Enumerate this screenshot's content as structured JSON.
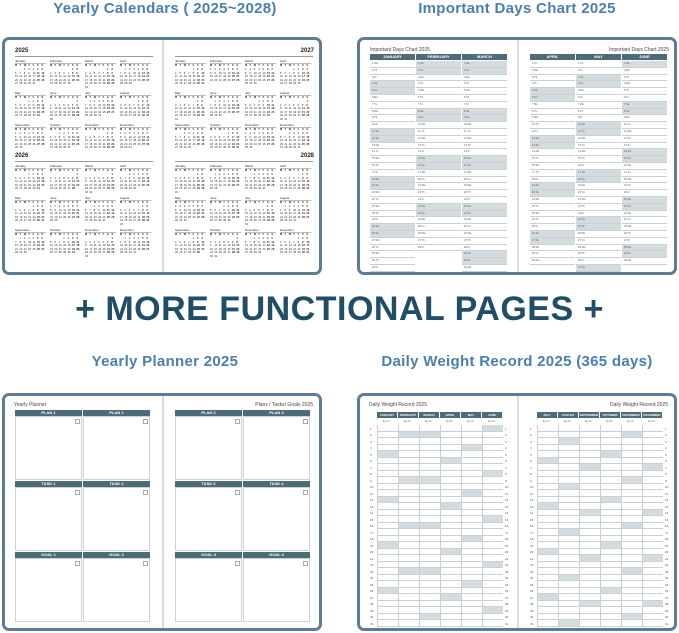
{
  "sections": {
    "calendars": {
      "title": "Yearly Calendars ( 2025~2028)",
      "years": [
        2025,
        2026,
        2027,
        2028
      ]
    },
    "important": {
      "title": "Important Days Chart 2025",
      "page_title": "Important Days Chart 2025",
      "left_months": [
        "JANUARY",
        "FEBRUARY",
        "MARCH"
      ],
      "right_months": [
        "APRIL",
        "MAY",
        "JUNE"
      ]
    },
    "banner": "+ MORE FUNCTIONAL PAGES +",
    "planner": {
      "title": "Yearly Planner 2025",
      "left_title": "Yearly Planner",
      "right_title": "Plans / Tasks/ Goals 2025",
      "left_labels": [
        [
          "PLAN 1",
          "PLAN 2"
        ],
        [
          "TASK 1",
          "TASK 2"
        ],
        [
          "GOAL 1",
          "GOAL 2"
        ]
      ],
      "right_labels": [
        [
          "PLAN 3",
          "PLAN 4"
        ],
        [
          "TASK 3",
          "TASK 4"
        ],
        [
          "GOAL 3",
          "GOAL 4"
        ]
      ]
    },
    "weight": {
      "title": "Daily Weight Record 2025 (365 days)",
      "page_title": "Daily Weight Record 2025",
      "unit": "kg / lb",
      "left_months": [
        "JANUARY",
        "FEBRUARY",
        "MARCH",
        "APRIL",
        "MAY",
        "JUNE"
      ],
      "right_months": [
        "JULY",
        "AUGUST",
        "SEPTEMBER",
        "OCTOBER",
        "NOVEMBER",
        "DECEMBER"
      ]
    }
  },
  "month_names": [
    "January",
    "February",
    "March",
    "April",
    "May",
    "June",
    "July",
    "August",
    "September",
    "October",
    "November",
    "December"
  ],
  "weekday_letters": [
    "M",
    "T",
    "W",
    "T",
    "F",
    "S",
    "S"
  ],
  "weekday_abbr": [
    "Su",
    "Mo",
    "Tu",
    "We",
    "Th",
    "Fr",
    "Sa"
  ],
  "colors": {
    "title": "#4a7fae",
    "banner": "#1f4e66",
    "header_bar": "#4e6b78",
    "shade": "#d5dcdf",
    "book_border": "#5d7d96"
  }
}
